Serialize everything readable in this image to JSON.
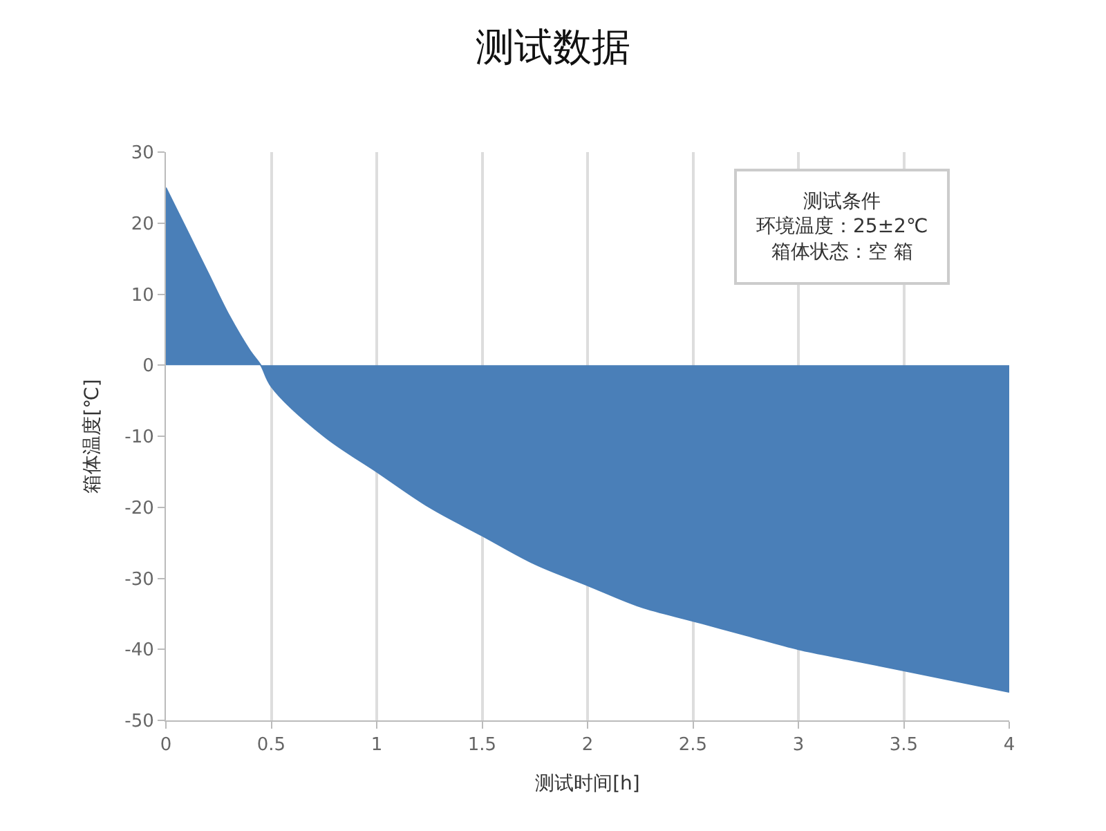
{
  "chart_data": {
    "type": "area",
    "title": "测试数据",
    "xlabel": "测试时间[h]",
    "ylabel": "箱体温度[℃]",
    "annotations": [
      "测试条件",
      "环境温度：25±2℃",
      "箱体状态：空 箱"
    ],
    "x": [
      0,
      0.1,
      0.2,
      0.3,
      0.4,
      0.45,
      0.5,
      0.75,
      1,
      1.25,
      1.5,
      1.75,
      2,
      2.25,
      2.5,
      2.75,
      3,
      3.25,
      3.5,
      3.75,
      4
    ],
    "series": [
      {
        "color": "#4a7fb8",
        "values": [
          25,
          19,
          13,
          7,
          2,
          0,
          -3,
          -10,
          -15,
          -20,
          -24,
          -28,
          -31,
          -34,
          -36,
          -38,
          -40,
          -41.5,
          -43,
          -44.5,
          -46
        ]
      }
    ],
    "xlim": [
      0,
      4
    ],
    "xticks": [
      0,
      0.5,
      1,
      1.5,
      2,
      2.5,
      3,
      3.5,
      4
    ],
    "ylim": [
      -50,
      30
    ],
    "yticks": [
      30,
      20,
      10,
      0,
      -10,
      -20,
      -30,
      -40,
      -50
    ],
    "grid": "x"
  }
}
